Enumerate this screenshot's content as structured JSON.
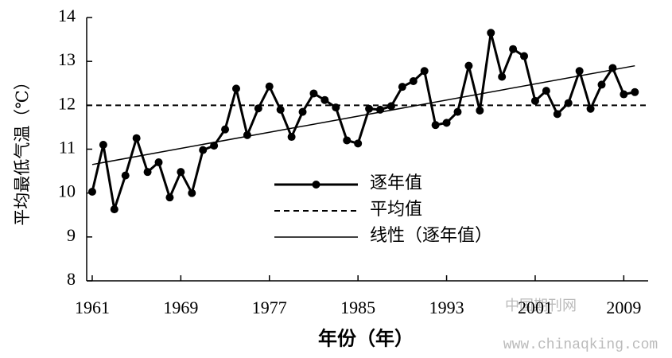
{
  "chart_data": {
    "type": "line",
    "x_label": "年份（年）",
    "y_label": "平均最低气温（℃）",
    "x": [
      1961,
      1962,
      1963,
      1964,
      1965,
      1966,
      1967,
      1968,
      1969,
      1970,
      1971,
      1972,
      1973,
      1974,
      1975,
      1976,
      1977,
      1978,
      1979,
      1980,
      1981,
      1982,
      1983,
      1984,
      1985,
      1986,
      1987,
      1988,
      1989,
      1990,
      1991,
      1992,
      1993,
      1994,
      1995,
      1996,
      1997,
      1998,
      1999,
      2000,
      2001,
      2002,
      2003,
      2004,
      2005,
      2006,
      2007,
      2008,
      2009,
      2010
    ],
    "series": [
      {
        "name": "逐年值",
        "color": "#000000",
        "style": "solid-marker",
        "values": [
          10.03,
          11.1,
          9.63,
          10.4,
          11.25,
          10.48,
          10.7,
          9.9,
          10.48,
          10.0,
          10.98,
          11.08,
          11.45,
          12.38,
          11.32,
          11.93,
          12.43,
          11.9,
          11.28,
          11.85,
          12.27,
          12.12,
          11.95,
          11.2,
          11.13,
          11.92,
          11.9,
          11.98,
          12.42,
          12.55,
          12.78,
          11.55,
          11.6,
          11.85,
          12.9,
          11.88,
          13.65,
          12.65,
          13.28,
          13.12,
          12.1,
          12.33,
          11.8,
          12.05,
          12.78,
          11.92,
          12.47,
          12.85,
          12.25,
          12.3
        ]
      },
      {
        "name": "平均值",
        "color": "#000000",
        "style": "dashed",
        "value": 12
      },
      {
        "name": "线性（逐年值）",
        "color": "#000000",
        "style": "thin",
        "x": [
          1961,
          2010
        ],
        "values": [
          10.65,
          12.9
        ]
      }
    ],
    "xlim": [
      1960.5,
      2011.2
    ],
    "xticks": [
      1961,
      1969,
      1977,
      1985,
      1993,
      2001,
      2009
    ],
    "ylim": [
      8,
      14
    ],
    "yticks": [
      8,
      9,
      10,
      11,
      12,
      13,
      14
    ],
    "watermark": [
      "中国期刊网",
      "www.chinaqking.com"
    ]
  }
}
